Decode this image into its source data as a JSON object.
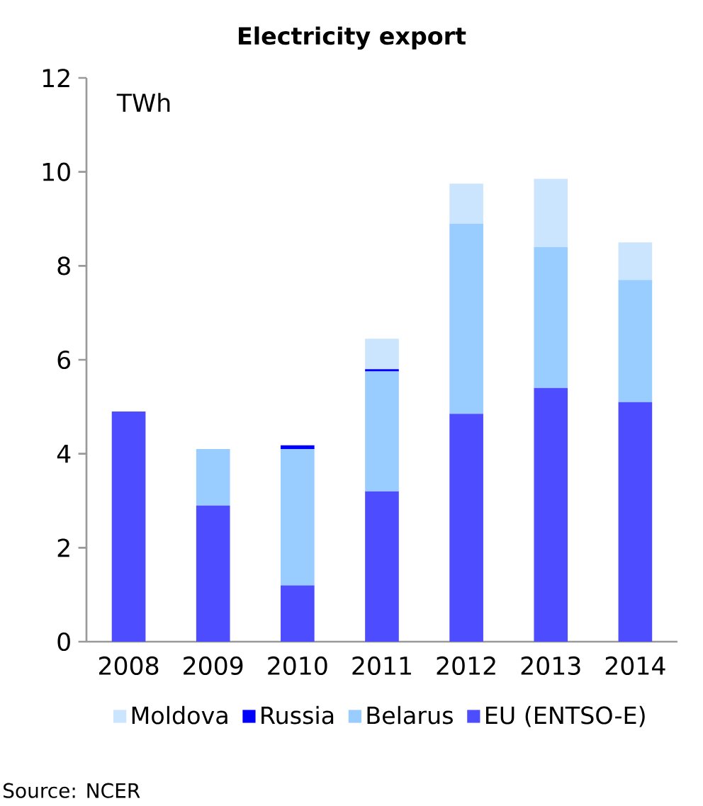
{
  "chart_data": {
    "type": "bar",
    "stacked": true,
    "title": "Electricity export",
    "ylabel": "TWh",
    "categories": [
      "2008",
      "2009",
      "2010",
      "2011",
      "2012",
      "2013",
      "2014"
    ],
    "series": [
      {
        "name": "EU (ENTSO-E)",
        "color": "#4d4dff",
        "values": [
          4.9,
          2.9,
          1.2,
          3.2,
          4.85,
          5.4,
          5.1
        ]
      },
      {
        "name": "Belarus",
        "color": "#99ccff",
        "values": [
          null,
          1.2,
          2.9,
          2.55,
          4.05,
          3.0,
          2.6
        ]
      },
      {
        "name": "Russia",
        "color": "#0000ff",
        "values": [
          null,
          null,
          0.08,
          0.05,
          null,
          null,
          null
        ]
      },
      {
        "name": "Moldova",
        "color": "#cce5ff",
        "values": [
          null,
          null,
          null,
          0.65,
          0.85,
          1.45,
          0.8
        ]
      }
    ],
    "ylim": [
      0,
      12
    ],
    "yticks": [
      0,
      2,
      4,
      6,
      8,
      10,
      12
    ],
    "grid": false,
    "legend": "bottom",
    "annotations": [
      "Source: NCER"
    ]
  }
}
